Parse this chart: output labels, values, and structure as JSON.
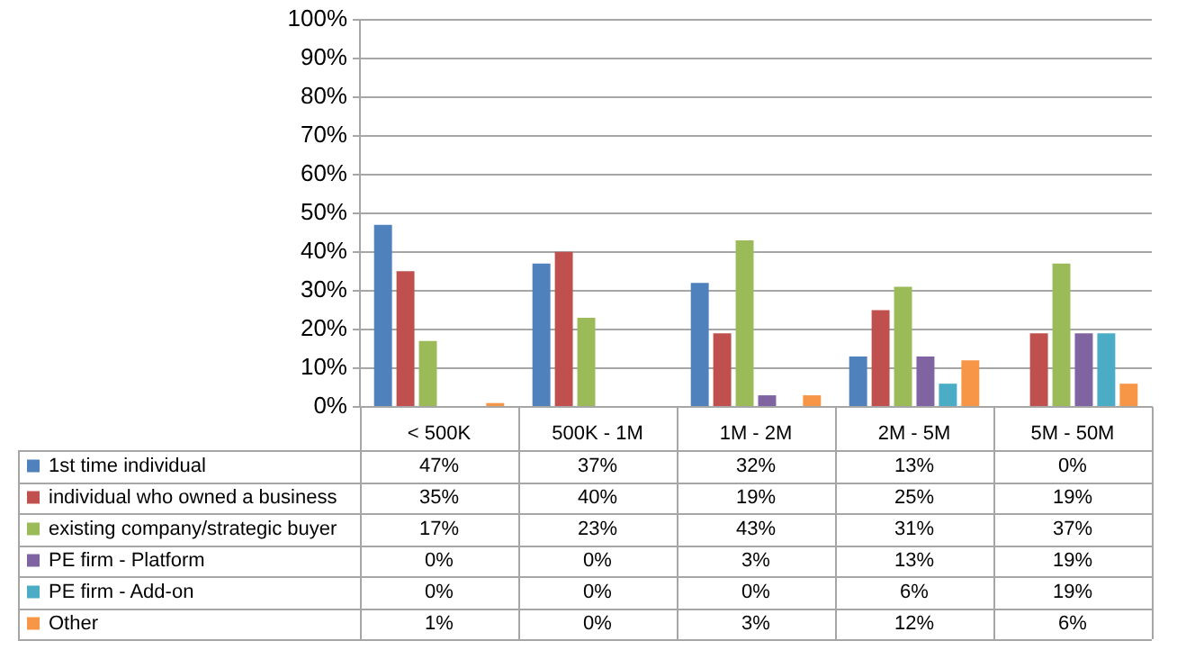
{
  "chart_data": {
    "type": "bar",
    "categories": [
      "< 500K",
      "500K - 1M",
      "1M - 2M",
      "2M - 5M",
      "5M - 50M"
    ],
    "series": [
      {
        "name": "1st time individual",
        "color": "#4f81bd",
        "values": [
          47,
          37,
          32,
          13,
          0
        ],
        "value_labels": [
          "47%",
          "37%",
          "32%",
          "13%",
          "0%"
        ]
      },
      {
        "name": "individual who owned a business",
        "color": "#c0504d",
        "values": [
          35,
          40,
          19,
          25,
          19
        ],
        "value_labels": [
          "35%",
          "40%",
          "19%",
          "25%",
          "19%"
        ]
      },
      {
        "name": "existing company/strategic buyer",
        "color": "#9bbb59",
        "values": [
          17,
          23,
          43,
          31,
          37
        ],
        "value_labels": [
          "17%",
          "23%",
          "43%",
          "31%",
          "37%"
        ]
      },
      {
        "name": "PE firm - Platform",
        "color": "#8064a2",
        "values": [
          0,
          0,
          3,
          13,
          19
        ],
        "value_labels": [
          "0%",
          "0%",
          "3%",
          "13%",
          "19%"
        ]
      },
      {
        "name": "PE firm - Add-on",
        "color": "#4bacc6",
        "values": [
          0,
          0,
          0,
          6,
          19
        ],
        "value_labels": [
          "0%",
          "0%",
          "0%",
          "6%",
          "19%"
        ]
      },
      {
        "name": "Other",
        "color": "#f79646",
        "values": [
          1,
          0,
          3,
          12,
          6
        ],
        "value_labels": [
          "1%",
          "0%",
          "3%",
          "12%",
          "6%"
        ]
      }
    ],
    "ylim": [
      0,
      100
    ],
    "yticks": [
      {
        "value": 0,
        "label": "0%"
      },
      {
        "value": 10,
        "label": "10%"
      },
      {
        "value": 20,
        "label": "20%"
      },
      {
        "value": 30,
        "label": "30%"
      },
      {
        "value": 40,
        "label": "40%"
      },
      {
        "value": 50,
        "label": "50%"
      },
      {
        "value": 60,
        "label": "60%"
      },
      {
        "value": 70,
        "label": "70%"
      },
      {
        "value": 80,
        "label": "80%"
      },
      {
        "value": 90,
        "label": "90%"
      },
      {
        "value": 100,
        "label": "100%"
      }
    ],
    "grid": "y",
    "legend": "left"
  }
}
